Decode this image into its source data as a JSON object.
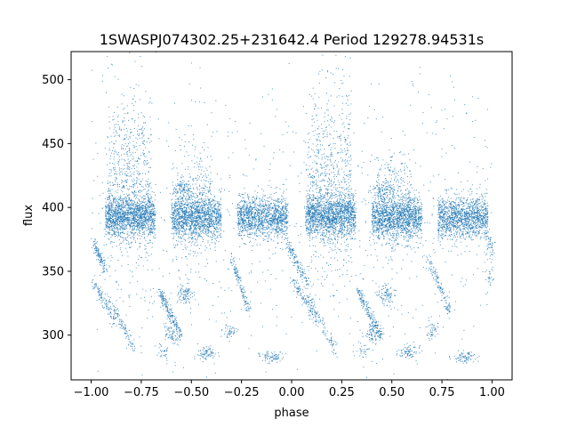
{
  "chart_data": {
    "type": "scatter",
    "title": "1SWASPJ074302.25+231642.4 Period 129278.94531s",
    "xlabel": "phase",
    "ylabel": "flux",
    "xlim": [
      -1.1,
      1.1
    ],
    "ylim": [
      265,
      522
    ],
    "grid": false,
    "marker_color": "#1f77b4",
    "x_ticks": [
      {
        "value": -1.0,
        "label": "−1.00"
      },
      {
        "value": -0.75,
        "label": "−0.75"
      },
      {
        "value": -0.5,
        "label": "−0.50"
      },
      {
        "value": -0.25,
        "label": "−0.25"
      },
      {
        "value": 0.0,
        "label": "0.00"
      },
      {
        "value": 0.25,
        "label": "0.25"
      },
      {
        "value": 0.5,
        "label": "0.50"
      },
      {
        "value": 0.75,
        "label": "0.75"
      },
      {
        "value": 1.0,
        "label": "1.00"
      }
    ],
    "y_ticks": [
      {
        "value": 300,
        "label": "300"
      },
      {
        "value": 350,
        "label": "350"
      },
      {
        "value": 400,
        "label": "400"
      },
      {
        "value": 450,
        "label": "450"
      },
      {
        "value": 500,
        "label": "500"
      }
    ],
    "point_groups": [
      {
        "phase_range": [
          -0.93,
          -0.68
        ],
        "flux_center": 393,
        "flux_spread": 8,
        "count": 1400
      },
      {
        "phase_range": [
          -0.6,
          -0.35
        ],
        "flux_center": 392,
        "flux_spread": 8,
        "count": 1300
      },
      {
        "phase_range": [
          -0.27,
          -0.02
        ],
        "flux_center": 392,
        "flux_spread": 8,
        "count": 1300
      },
      {
        "phase_range": [
          0.07,
          0.32
        ],
        "flux_center": 393,
        "flux_spread": 8,
        "count": 1400
      },
      {
        "phase_range": [
          0.4,
          0.65
        ],
        "flux_center": 392,
        "flux_spread": 8,
        "count": 1300
      },
      {
        "phase_range": [
          0.73,
          0.98
        ],
        "flux_center": 392,
        "flux_spread": 8,
        "count": 1300
      },
      {
        "phase_range": [
          -0.92,
          -0.7
        ],
        "flux_center": 420,
        "flux_spread": 35,
        "count": 700
      },
      {
        "phase_range": [
          0.08,
          0.3
        ],
        "flux_center": 420,
        "flux_spread": 35,
        "count": 700
      },
      {
        "phase_range": [
          -0.58,
          -0.4
        ],
        "flux_center": 405,
        "flux_spread": 20,
        "count": 350
      },
      {
        "phase_range": [
          0.42,
          0.6
        ],
        "flux_center": 405,
        "flux_spread": 20,
        "count": 350
      },
      {
        "phase_range": [
          -1.0,
          1.0
        ],
        "flux_center": 390,
        "flux_spread": 60,
        "count": 900
      }
    ],
    "trails": [
      {
        "from": [
          -0.99,
          372
        ],
        "to": [
          -0.93,
          352
        ],
        "count": 120
      },
      {
        "from": [
          -0.99,
          342
        ],
        "to": [
          -0.88,
          310
        ],
        "count": 110
      },
      {
        "from": [
          -0.66,
          335
        ],
        "to": [
          -0.55,
          298
        ],
        "count": 200
      },
      {
        "from": [
          -0.3,
          360
        ],
        "to": [
          -0.21,
          318
        ],
        "count": 130
      },
      {
        "from": [
          -0.02,
          372
        ],
        "to": [
          0.08,
          340
        ],
        "count": 140
      },
      {
        "from": [
          0.01,
          342
        ],
        "to": [
          0.12,
          312
        ],
        "count": 110
      },
      {
        "from": [
          0.33,
          335
        ],
        "to": [
          0.45,
          298
        ],
        "count": 200
      },
      {
        "from": [
          0.68,
          360
        ],
        "to": [
          0.79,
          318
        ],
        "count": 130
      },
      {
        "from": [
          -0.92,
          330
        ],
        "to": [
          -0.78,
          288
        ],
        "count": 110
      },
      {
        "from": [
          0.08,
          330
        ],
        "to": [
          0.22,
          288
        ],
        "count": 110
      }
    ],
    "clumps": [
      {
        "center": [
          -0.53,
          332
        ],
        "spread": [
          0.02,
          4
        ],
        "count": 90
      },
      {
        "center": [
          0.47,
          332
        ],
        "spread": [
          0.02,
          4
        ],
        "count": 90
      },
      {
        "center": [
          -0.54,
          414
        ],
        "spread": [
          0.03,
          4
        ],
        "count": 90
      },
      {
        "center": [
          0.46,
          414
        ],
        "spread": [
          0.03,
          4
        ],
        "count": 90
      },
      {
        "center": [
          -0.42,
          286
        ],
        "spread": [
          0.025,
          2.5
        ],
        "count": 80
      },
      {
        "center": [
          0.58,
          286
        ],
        "spread": [
          0.025,
          2.5
        ],
        "count": 80
      },
      {
        "center": [
          -0.1,
          283
        ],
        "spread": [
          0.03,
          2.5
        ],
        "count": 80
      },
      {
        "center": [
          0.86,
          283
        ],
        "spread": [
          0.03,
          2.5
        ],
        "count": 80
      },
      {
        "center": [
          -0.6,
          301
        ],
        "spread": [
          0.02,
          4
        ],
        "count": 70
      },
      {
        "center": [
          0.4,
          301
        ],
        "spread": [
          0.02,
          4
        ],
        "count": 70
      },
      {
        "center": [
          -0.3,
          303
        ],
        "spread": [
          0.02,
          3
        ],
        "count": 45
      },
      {
        "center": [
          0.7,
          303
        ],
        "spread": [
          0.02,
          3
        ],
        "count": 45
      },
      {
        "center": [
          -0.64,
          287
        ],
        "spread": [
          0.015,
          3
        ],
        "count": 30
      },
      {
        "center": [
          0.36,
          287
        ],
        "spread": [
          0.015,
          3
        ],
        "count": 30
      },
      {
        "center": [
          0.99,
          370
        ],
        "spread": [
          0.01,
          5
        ],
        "count": 50
      },
      {
        "center": [
          0.99,
          345
        ],
        "spread": [
          0.01,
          4
        ],
        "count": 25
      }
    ]
  }
}
